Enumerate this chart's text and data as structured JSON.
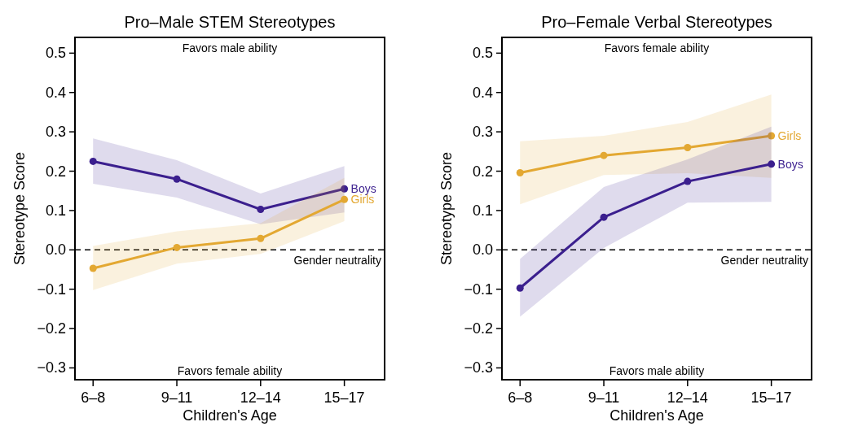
{
  "chart_data": [
    {
      "type": "line",
      "title": "Pro–Male STEM Stereotypes",
      "xlabel": "Children's Age",
      "ylabel": "Stereotype Score",
      "categories": [
        "6–8",
        "9–11",
        "12–14",
        "15–17"
      ],
      "series": [
        {
          "name": "Boys",
          "color": "#3b1f8e",
          "values": [
            0.225,
            0.18,
            0.103,
            0.155
          ],
          "lower": [
            0.168,
            0.133,
            0.065,
            0.095
          ],
          "upper": [
            0.283,
            0.228,
            0.143,
            0.213
          ]
        },
        {
          "name": "Girls",
          "color": "#e3a832",
          "values": [
            -0.047,
            0.006,
            0.029,
            0.128
          ],
          "lower": [
            -0.102,
            -0.035,
            -0.01,
            0.073
          ],
          "upper": [
            0.01,
            0.047,
            0.068,
            0.183
          ]
        }
      ],
      "ylim": [
        -0.33,
        0.54
      ],
      "yticks": [
        {
          "value": -0.3,
          "label": "−0.3"
        },
        {
          "value": -0.2,
          "label": "−0.2"
        },
        {
          "value": -0.1,
          "label": "−0.1"
        },
        {
          "value": 0,
          "label": "0.0"
        },
        0.1,
        0.2,
        0.3,
        0.4,
        0.5
      ],
      "ref_lines": [
        {
          "axis": "y",
          "value": 0,
          "label": "Gender neutrality",
          "line_style": "dashed",
          "color": "#000000"
        }
      ],
      "annotations": [
        "Favors male ability",
        "Favors female ability"
      ],
      "marker": "circle",
      "line_style": "solid",
      "grid": false,
      "legend": false
    },
    {
      "type": "line",
      "title": "Pro–Female Verbal Stereotypes",
      "xlabel": "Children's Age",
      "ylabel": "Stereotype Score",
      "categories": [
        "6–8",
        "9–11",
        "12–14",
        "15–17"
      ],
      "series": [
        {
          "name": "Girls",
          "color": "#e3a832",
          "values": [
            0.196,
            0.24,
            0.26,
            0.29
          ],
          "lower": [
            0.116,
            0.19,
            0.195,
            0.183
          ],
          "upper": [
            0.276,
            0.29,
            0.325,
            0.395
          ]
        },
        {
          "name": "Boys",
          "color": "#3b1f8e",
          "values": [
            -0.097,
            0.083,
            0.174,
            0.218
          ],
          "lower": [
            -0.17,
            0.005,
            0.12,
            0.122
          ],
          "upper": [
            -0.023,
            0.16,
            0.23,
            0.313
          ]
        }
      ],
      "ylim": [
        -0.33,
        0.54
      ],
      "yticks": [
        {
          "value": -0.3,
          "label": "−0.3"
        },
        {
          "value": -0.2,
          "label": "−0.2"
        },
        {
          "value": -0.1,
          "label": "−0.1"
        },
        {
          "value": 0,
          "label": "0.0"
        },
        0.1,
        0.2,
        0.3,
        0.4,
        0.5
      ],
      "ref_lines": [
        {
          "axis": "y",
          "value": 0,
          "label": "Gender neutrality",
          "line_style": "dashed",
          "color": "#000000"
        }
      ],
      "annotations": [
        "Favors female ability",
        "Favors male ability"
      ],
      "marker": "circle",
      "line_style": "solid",
      "grid": false,
      "legend": false
    }
  ]
}
